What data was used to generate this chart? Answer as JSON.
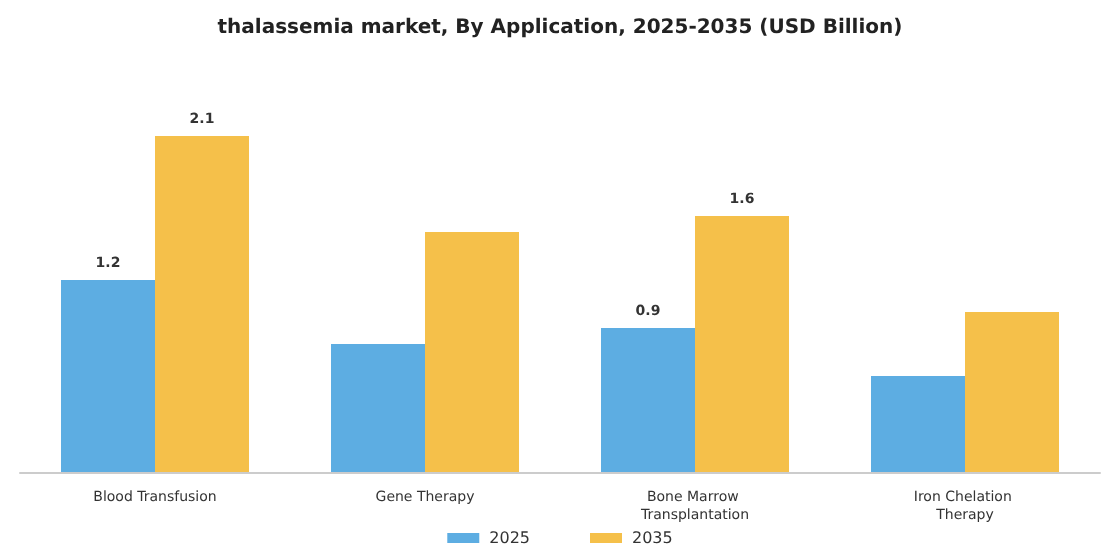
{
  "chart_data": {
    "type": "bar",
    "title": "thalassemia market, By Application, 2025-2035 (USD Billion)",
    "categories": [
      "Blood Transfusion",
      "Gene Therapy",
      "Bone Marrow Transplantation",
      "Iron Chelation Therapy"
    ],
    "series": [
      {
        "name": "2025",
        "color": "#5dade2",
        "values": [
          1.2,
          0.8,
          0.9,
          0.6
        ],
        "value_labels": [
          "1.2",
          null,
          "0.9",
          null
        ]
      },
      {
        "name": "2035",
        "color": "#f5c04a",
        "values": [
          2.1,
          1.5,
          1.6,
          1.0
        ],
        "value_labels": [
          "2.1",
          null,
          "1.6",
          null
        ]
      }
    ],
    "legend": "bottom"
  }
}
